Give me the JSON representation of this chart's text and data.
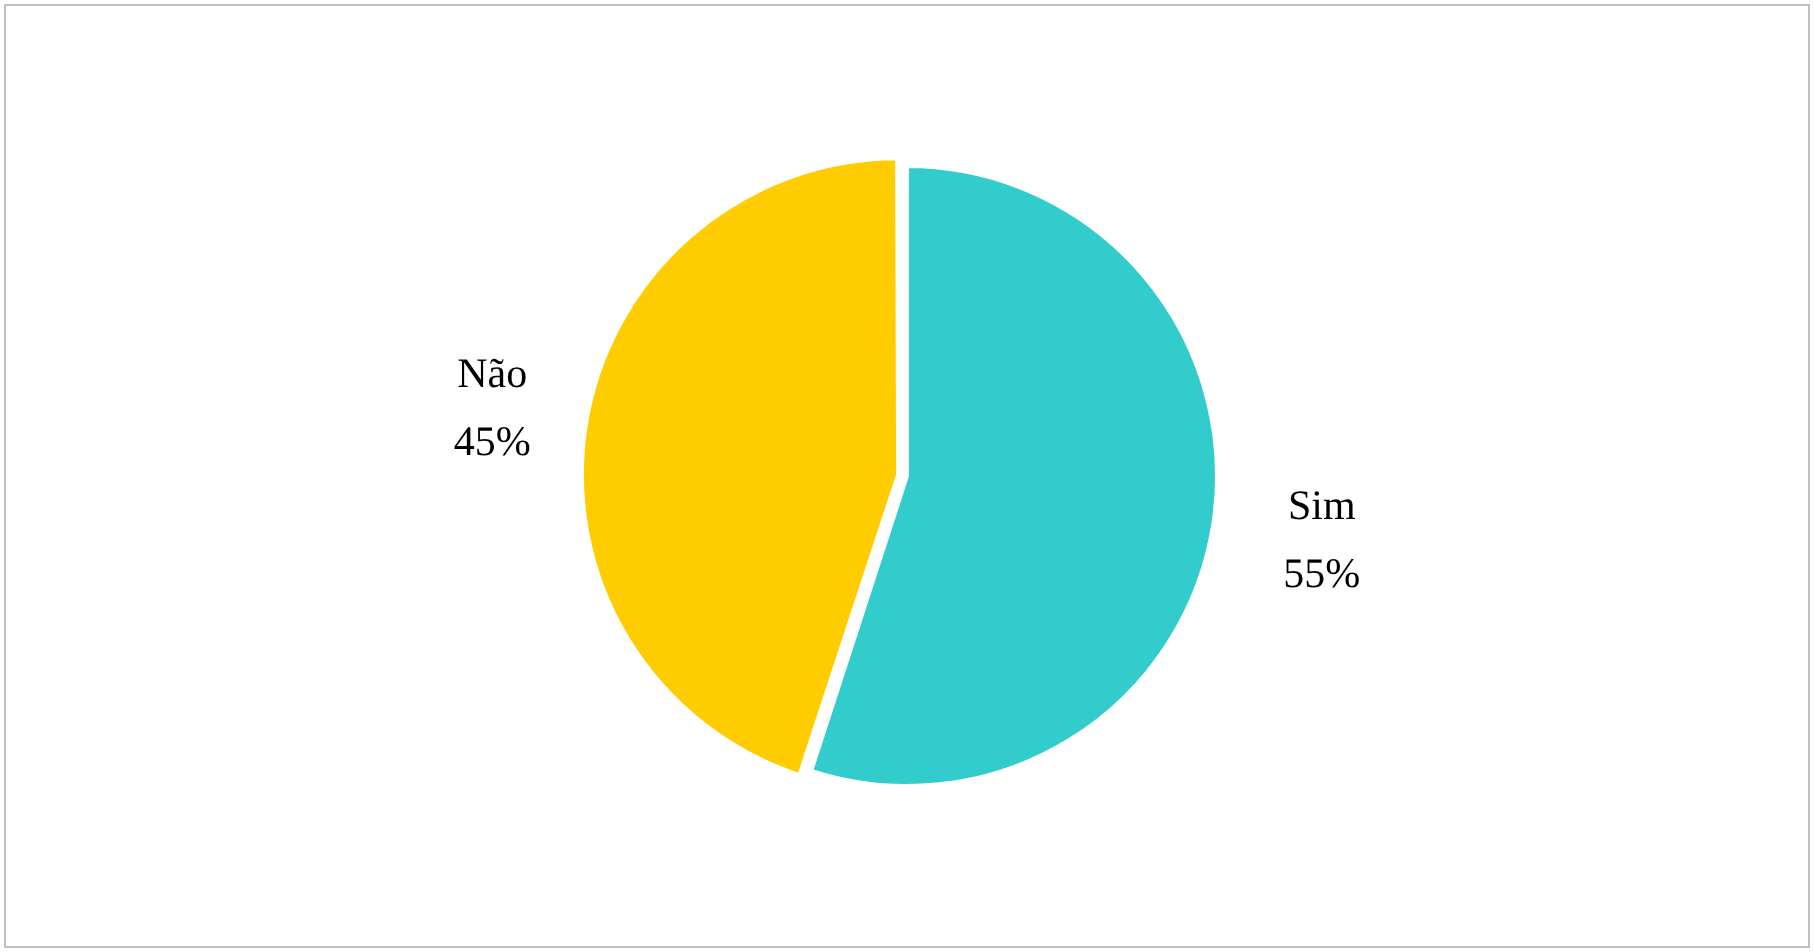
{
  "chart_data": {
    "type": "pie",
    "categories": [
      "Sim",
      "Não"
    ],
    "values": [
      55,
      45
    ],
    "colors": [
      "#33cccc",
      "#ffcc00"
    ],
    "value_labels": [
      "55%",
      "45%"
    ],
    "legend": false
  }
}
